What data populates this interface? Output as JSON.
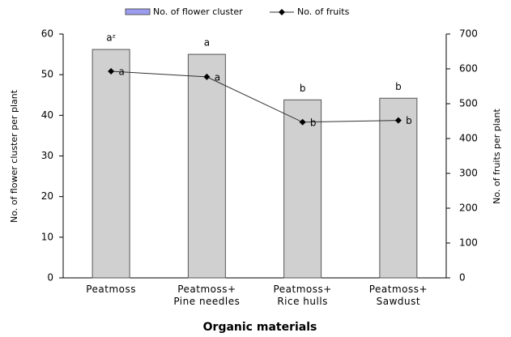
{
  "chart_data": {
    "type": "bar-line",
    "x_label": "Organic materials",
    "y_label": "No. of flower cluster per plant",
    "y2_label": "No. of fruits per plant",
    "categories": [
      "Peatmoss",
      "Peatmoss+\nPine needles",
      "Peatmoss+\nRice hulls",
      "Peatmoss+\nSawdust"
    ],
    "series": [
      {
        "name": "No. of flower cluster",
        "color": "#d0d0d0",
        "legend_color": "#9c9cf0",
        "values": [
          56.2,
          55,
          43.8,
          44.2
        ],
        "annotations": [
          "aᶻ",
          "a",
          "b",
          "b"
        ]
      },
      {
        "name": "No. of fruits",
        "color": "#333333",
        "axis": "y2",
        "values": [
          593,
          577,
          447,
          452
        ],
        "annotations": [
          "a",
          "a",
          "b",
          "b"
        ]
      }
    ],
    "ylim": [
      0,
      60
    ],
    "yticks": [
      0,
      10,
      20,
      30,
      40,
      50,
      60
    ],
    "y2lim": [
      0,
      700
    ],
    "y2ticks": [
      0,
      100,
      200,
      300,
      400,
      500,
      600,
      700
    ]
  }
}
